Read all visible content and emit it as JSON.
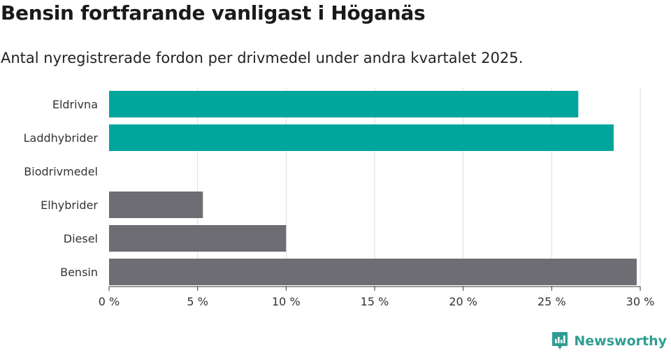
{
  "title": "Bensin fortfarande vanligast i Höganäs",
  "subtitle": "Antal nyregistrerade fordon per drivmedel under andra kvartalet 2025.",
  "brand": {
    "name": "Newsworthy"
  },
  "colors": {
    "electric": "#00a69c",
    "fossil": "#6d6d73",
    "grid": "#dddddd",
    "brand": "#2e9d92"
  },
  "chart_data": {
    "type": "bar",
    "orientation": "horizontal",
    "categories": [
      "Eldrivna",
      "Laddhybrider",
      "Biodrivmedel",
      "Elhybrider",
      "Diesel",
      "Bensin"
    ],
    "values": [
      26.5,
      28.5,
      0,
      5.3,
      10.0,
      29.8
    ],
    "bar_colors": [
      "#00a69c",
      "#00a69c",
      "#00a69c",
      "#6d6d73",
      "#6d6d73",
      "#6d6d73"
    ],
    "xlim": [
      0,
      30
    ],
    "xticks": [
      0,
      5,
      10,
      15,
      20,
      25,
      30
    ],
    "xtick_labels": [
      "0 %",
      "5 %",
      "10 %",
      "15 %",
      "20 %",
      "25 %",
      "30 %"
    ],
    "unit": "%",
    "grid": true,
    "xlabel": "",
    "ylabel": ""
  }
}
